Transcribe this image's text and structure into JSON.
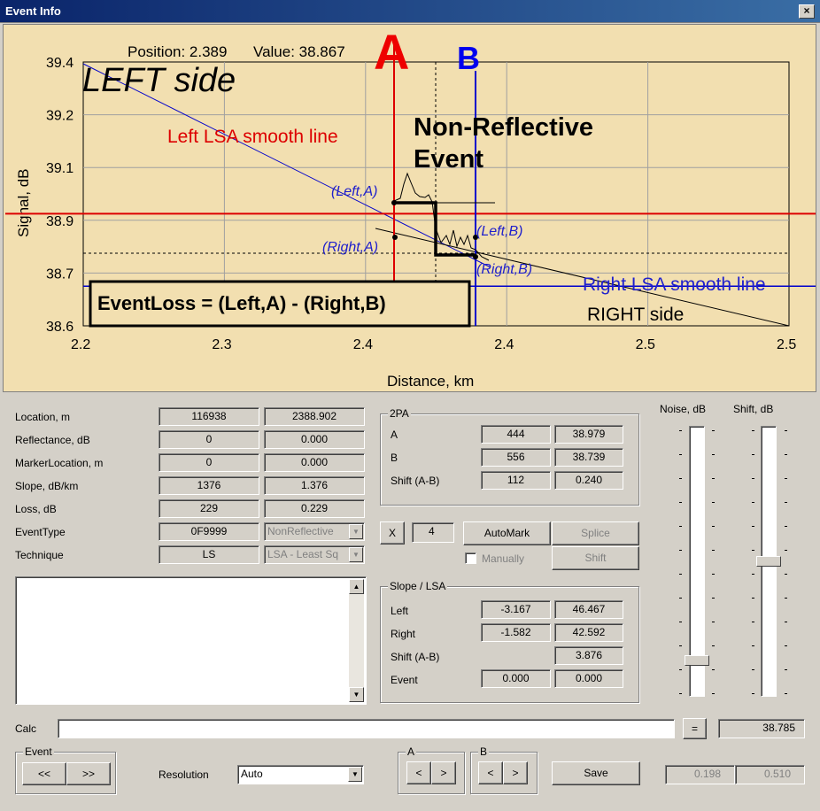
{
  "window": {
    "title": "Event Info",
    "close": "×"
  },
  "chart_data": {
    "type": "line",
    "readout": {
      "position_label": "Position: 2.389",
      "value_label": "Value: 38.867"
    },
    "xlabel": "Distance, km",
    "ylabel": "Signal, dB",
    "xlim": [
      2.2,
      2.5
    ],
    "ylim": [
      38.6,
      39.4
    ],
    "x_ticks": [
      "2.2",
      "2.3",
      "2.4",
      "2.4",
      "2.5",
      "2.5"
    ],
    "y_ticks": [
      "39.4",
      "39.2",
      "39.1",
      "38.9",
      "38.7",
      "38.6"
    ],
    "grid": true,
    "marker_a": {
      "label": "A",
      "x": 2.43,
      "color": "#dd0000"
    },
    "marker_b": {
      "label": "B",
      "x": 2.386,
      "color": "#0000cc"
    },
    "annotations": {
      "left_side": "LEFT side",
      "right_side": "RIGHT side",
      "left_lsa": "Left LSA smooth line",
      "right_lsa": "Right LSA smooth line",
      "event_title_1": "Non-Reflective",
      "event_title_2": "Event",
      "left_a": "(Left,A)",
      "right_a": "(Right,A)",
      "left_b": "(Left,B)",
      "right_b": "(Right,B)",
      "formula": "EventLoss = (Left,A) - (Right,B)"
    },
    "levels": {
      "red_line": 38.94,
      "blue_line": 38.72,
      "dotted_line": 38.82
    }
  },
  "params": {
    "rows": [
      {
        "label": "Location, m",
        "v1": "116938",
        "v2": "2388.902"
      },
      {
        "label": "Reflectance, dB",
        "v1": "0",
        "v2": "0.000"
      },
      {
        "label": "MarkerLocation, m",
        "v1": "0",
        "v2": "0.000"
      },
      {
        "label": "Slope, dB/km",
        "v1": "1376",
        "v2": "1.376"
      },
      {
        "label": "Loss, dB",
        "v1": "229",
        "v2": "0.229"
      },
      {
        "label": "EventType",
        "v1": "0F9999",
        "v2": "NonReflective"
      },
      {
        "label": "Technique",
        "v1": "LS",
        "v2": "LSA - Least Sq"
      }
    ]
  },
  "twopa": {
    "title": "2PA",
    "rows": [
      {
        "label": "A",
        "v1": "444",
        "v2": "38.979"
      },
      {
        "label": "B",
        "v1": "556",
        "v2": "38.739"
      },
      {
        "label": "Shift (A-B)",
        "v1": "112",
        "v2": "0.240"
      }
    ]
  },
  "controls": {
    "x_button": "X",
    "x_value": "4",
    "automark": "AutoMark",
    "splice": "Splice",
    "manually": "Manually",
    "shift": "Shift"
  },
  "slope_lsa": {
    "title": "Slope / LSA",
    "rows": [
      {
        "label": "Left",
        "v1": "-3.167",
        "v2": "46.467"
      },
      {
        "label": "Right",
        "v1": "-1.582",
        "v2": "42.592"
      },
      {
        "label": "Shift (A-B)",
        "v1": "",
        "v2": "3.876"
      },
      {
        "label": "Event",
        "v1": "0.000",
        "v2": "0.000"
      }
    ]
  },
  "sliders": {
    "noise_label": "Noise, dB",
    "shift_label": "Shift, dB",
    "noise_level": 0.9,
    "shift_level": 0.5
  },
  "calc": {
    "label": "Calc",
    "value": "",
    "equals": "=",
    "result": "38.785"
  },
  "bottom": {
    "event_title": "Event",
    "prev": "<<",
    "next": ">>",
    "resolution_label": "Resolution",
    "resolution_value": "Auto",
    "a_title": "A",
    "b_title": "B",
    "left": "<",
    "right": ">",
    "save": "Save",
    "out1": "0.198",
    "out2": "0.510"
  }
}
